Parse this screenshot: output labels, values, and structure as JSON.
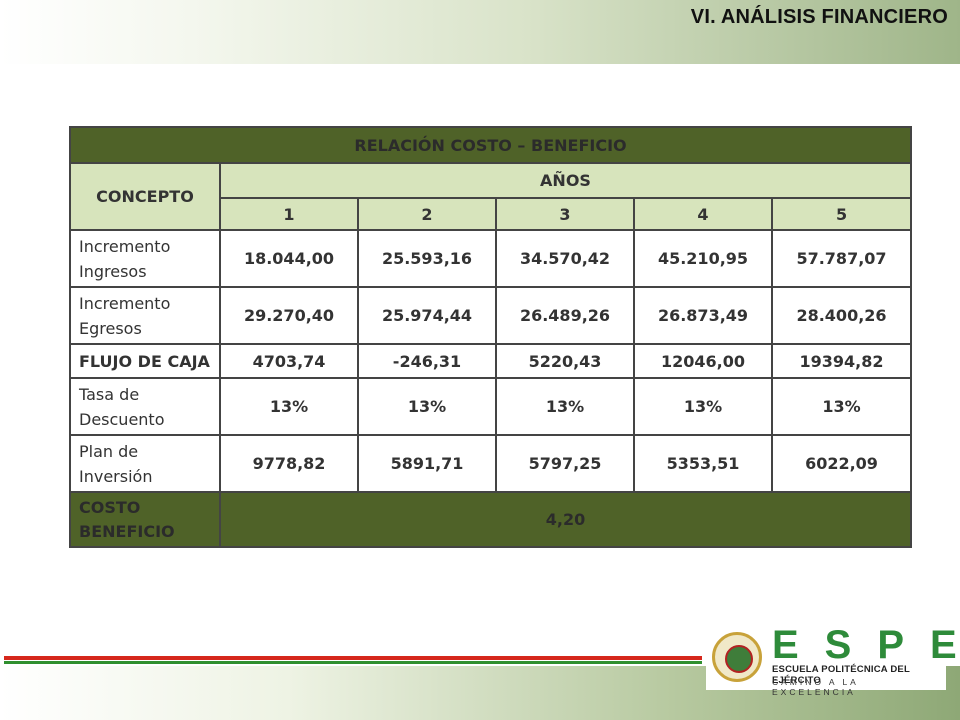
{
  "slide": {
    "title": "VI. ANÁLISIS FINANCIERO"
  },
  "table": {
    "title": "RELACIÓN COSTO – BENEFICIO",
    "concept_header": "CONCEPTO",
    "years_header": "AÑOS",
    "years": [
      "1",
      "2",
      "3",
      "4",
      "5"
    ],
    "rows": [
      {
        "label_line1": "Incremento",
        "label_line2": "Ingresos",
        "values": [
          "18.044,00",
          "25.593,16",
          "34.570,42",
          "45.210,95",
          "57.787,07"
        ]
      },
      {
        "label_line1": "Incremento",
        "label_line2": "Egresos",
        "values": [
          "29.270,40",
          "25.974,44",
          "26.489,26",
          "26.873,49",
          "28.400,26"
        ]
      },
      {
        "label": "FLUJO DE CAJA",
        "values": [
          "4703,74",
          "-246,31",
          "5220,43",
          "12046,00",
          "19394,82"
        ]
      },
      {
        "label_line1": "Tasa de",
        "label_line2": "Descuento",
        "values": [
          "13%",
          "13%",
          "13%",
          "13%",
          "13%"
        ]
      },
      {
        "label_line1": "Plan de",
        "label_line2": "Inversión",
        "values": [
          "9778,82",
          "5891,71",
          "5797,25",
          "5353,51",
          "6022,09"
        ]
      }
    ],
    "final": {
      "label_line1": "COSTO",
      "label_line2": "BENEFICIO",
      "value": "4,20"
    }
  },
  "logo": {
    "brand": "ESPE",
    "name": "ESCUELA POLITÉCNICA DEL EJÉRCITO",
    "tagline": "CAMINO A LA EXCELENCIA"
  },
  "colors": {
    "dark_green": "#4f6228",
    "light_green": "#d7e4bc",
    "stripe_red": "#d6271c",
    "stripe_green": "#2f8f2f",
    "brand_green": "#2e8b3a"
  }
}
